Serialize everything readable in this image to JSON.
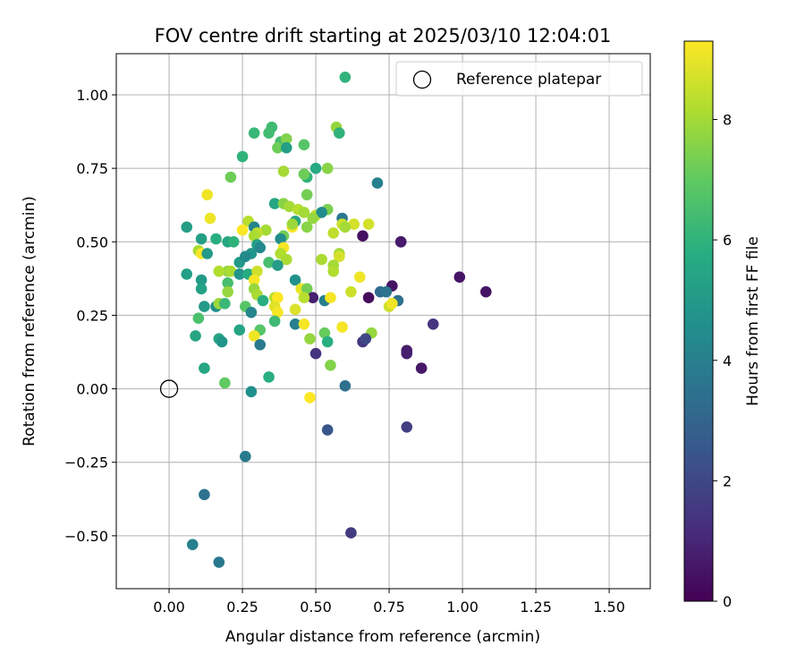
{
  "chart_data": {
    "type": "scatter",
    "title": "FOV centre drift starting at 2025/03/10 12:04:01",
    "xlabel": "Angular distance from reference (arcmin)",
    "ylabel": "Rotation from reference (arcmin)",
    "xlim": [
      -0.18,
      1.64
    ],
    "ylim": [
      -0.68,
      1.14
    ],
    "x_ticks": [
      "0.00",
      "0.25",
      "0.50",
      "0.75",
      "1.00",
      "1.25",
      "1.50"
    ],
    "y_ticks": [
      "−0.50",
      "−0.25",
      "0.00",
      "0.25",
      "0.50",
      "0.75",
      "1.00"
    ],
    "grid": true,
    "legend": {
      "placement": "top-right",
      "entries": [
        "Reference platepar"
      ]
    },
    "reference_point": {
      "x": 0.0,
      "y": 0.0
    },
    "colorbar": {
      "label": "Hours from first FF file",
      "range": [
        0,
        9.3
      ],
      "ticks": [
        "0",
        "2",
        "4",
        "6",
        "8"
      ],
      "colormap": "viridis"
    },
    "points": [
      [
        0.6,
        1.06,
        6.0
      ],
      [
        0.35,
        0.89,
        6.3
      ],
      [
        0.57,
        0.89,
        7.8
      ],
      [
        0.29,
        0.87,
        6.2
      ],
      [
        0.34,
        0.87,
        6.4
      ],
      [
        0.58,
        0.87,
        6.0
      ],
      [
        0.38,
        0.84,
        6.5
      ],
      [
        0.4,
        0.85,
        7.5
      ],
      [
        0.46,
        0.83,
        6.8
      ],
      [
        0.37,
        0.82,
        7.2
      ],
      [
        0.4,
        0.82,
        5.2
      ],
      [
        0.25,
        0.79,
        6.0
      ],
      [
        0.54,
        0.75,
        7.6
      ],
      [
        0.5,
        0.75,
        5.6
      ],
      [
        0.39,
        0.74,
        8.0
      ],
      [
        0.21,
        0.72,
        7.2
      ],
      [
        0.47,
        0.72,
        6.0
      ],
      [
        0.46,
        0.73,
        7.2
      ],
      [
        0.71,
        0.7,
        4.0
      ],
      [
        0.47,
        0.66,
        7.3
      ],
      [
        0.13,
        0.66,
        9.1
      ],
      [
        0.36,
        0.63,
        5.5
      ],
      [
        0.39,
        0.63,
        7.6
      ],
      [
        0.41,
        0.62,
        8.0
      ],
      [
        0.44,
        0.61,
        8.3
      ],
      [
        0.54,
        0.61,
        7.4
      ],
      [
        0.46,
        0.6,
        8.0
      ],
      [
        0.5,
        0.59,
        8.4
      ],
      [
        0.52,
        0.6,
        4.5
      ],
      [
        0.49,
        0.58,
        7.8
      ],
      [
        0.59,
        0.58,
        3.7
      ],
      [
        0.43,
        0.57,
        5.4
      ],
      [
        0.27,
        0.57,
        8.3
      ],
      [
        0.14,
        0.58,
        9.1
      ],
      [
        0.06,
        0.55,
        5.2
      ],
      [
        0.29,
        0.55,
        4.2
      ],
      [
        0.33,
        0.54,
        8.0
      ],
      [
        0.3,
        0.53,
        8.4
      ],
      [
        0.25,
        0.54,
        9.3
      ],
      [
        0.29,
        0.52,
        8.1
      ],
      [
        0.42,
        0.55,
        9.2
      ],
      [
        0.42,
        0.56,
        7.9
      ],
      [
        0.56,
        0.53,
        8.4
      ],
      [
        0.59,
        0.56,
        8.6
      ],
      [
        0.63,
        0.56,
        8.7
      ],
      [
        0.68,
        0.56,
        8.7
      ],
      [
        0.6,
        0.55,
        8.0
      ],
      [
        0.47,
        0.55,
        7.6
      ],
      [
        0.39,
        0.52,
        7.3
      ],
      [
        0.38,
        0.51,
        4.5
      ],
      [
        0.66,
        0.52,
        0.4
      ],
      [
        0.79,
        0.5,
        0.8
      ],
      [
        0.79,
        0.5,
        0.7
      ],
      [
        0.11,
        0.51,
        5.2
      ],
      [
        0.16,
        0.51,
        5.8
      ],
      [
        0.2,
        0.5,
        5.5
      ],
      [
        0.22,
        0.5,
        6.0
      ],
      [
        0.3,
        0.49,
        5.2
      ],
      [
        0.31,
        0.48,
        4.3
      ],
      [
        0.39,
        0.48,
        9.2
      ],
      [
        0.38,
        0.46,
        8.2
      ],
      [
        0.28,
        0.46,
        4.8
      ],
      [
        0.24,
        0.43,
        5.0
      ],
      [
        0.26,
        0.45,
        4.4
      ],
      [
        0.1,
        0.47,
        8.1
      ],
      [
        0.11,
        0.46,
        9.2
      ],
      [
        0.13,
        0.46,
        5.0
      ],
      [
        0.58,
        0.46,
        8.0
      ],
      [
        0.58,
        0.45,
        8.7
      ],
      [
        0.52,
        0.44,
        8.1
      ],
      [
        0.4,
        0.44,
        8.1
      ],
      [
        0.34,
        0.43,
        6.5
      ],
      [
        0.37,
        0.42,
        5.1
      ],
      [
        0.2,
        0.4,
        7.7
      ],
      [
        0.21,
        0.4,
        8.1
      ],
      [
        0.17,
        0.4,
        8.2
      ],
      [
        0.24,
        0.39,
        4.8
      ],
      [
        0.27,
        0.39,
        5.7
      ],
      [
        0.3,
        0.4,
        8.6
      ],
      [
        0.29,
        0.37,
        9.2
      ],
      [
        0.06,
        0.39,
        5.2
      ],
      [
        0.11,
        0.37,
        5.0
      ],
      [
        0.2,
        0.36,
        6.5
      ],
      [
        0.43,
        0.37,
        4.7
      ],
      [
        0.56,
        0.42,
        8.0
      ],
      [
        0.56,
        0.4,
        8.2
      ],
      [
        0.65,
        0.38,
        9.1
      ],
      [
        0.76,
        0.35,
        0.5
      ],
      [
        0.72,
        0.33,
        3.2
      ],
      [
        0.74,
        0.33,
        3.6
      ],
      [
        0.99,
        0.38,
        0.5
      ],
      [
        1.08,
        0.33,
        0.5
      ],
      [
        0.29,
        0.34,
        7.8
      ],
      [
        0.3,
        0.32,
        8.1
      ],
      [
        0.36,
        0.31,
        8.2
      ],
      [
        0.37,
        0.31,
        9.3
      ],
      [
        0.45,
        0.34,
        9.0
      ],
      [
        0.47,
        0.34,
        7.3
      ],
      [
        0.49,
        0.31,
        0.8
      ],
      [
        0.46,
        0.31,
        8.3
      ],
      [
        0.53,
        0.3,
        4.0
      ],
      [
        0.55,
        0.31,
        9.2
      ],
      [
        0.62,
        0.33,
        8.6
      ],
      [
        0.68,
        0.31,
        0.3
      ],
      [
        0.78,
        0.3,
        3.5
      ],
      [
        0.75,
        0.28,
        8.6
      ],
      [
        0.76,
        0.29,
        9.1
      ],
      [
        0.11,
        0.34,
        5.3
      ],
      [
        0.2,
        0.33,
        7.8
      ],
      [
        0.12,
        0.28,
        5.0
      ],
      [
        0.16,
        0.28,
        4.6
      ],
      [
        0.17,
        0.29,
        7.9
      ],
      [
        0.19,
        0.29,
        6.2
      ],
      [
        0.26,
        0.28,
        6.8
      ],
      [
        0.28,
        0.26,
        4.2
      ],
      [
        0.32,
        0.3,
        5.8
      ],
      [
        0.36,
        0.28,
        8.9
      ],
      [
        0.37,
        0.26,
        9.2
      ],
      [
        0.43,
        0.27,
        8.8
      ],
      [
        0.9,
        0.22,
        1.4
      ],
      [
        0.1,
        0.24,
        6.6
      ],
      [
        0.31,
        0.2,
        6.8
      ],
      [
        0.29,
        0.18,
        9.1
      ],
      [
        0.36,
        0.23,
        6.3
      ],
      [
        0.43,
        0.22,
        4.0
      ],
      [
        0.46,
        0.22,
        9.2
      ],
      [
        0.59,
        0.21,
        9.2
      ],
      [
        0.69,
        0.19,
        7.8
      ],
      [
        0.53,
        0.19,
        7.1
      ],
      [
        0.24,
        0.2,
        5.4
      ],
      [
        0.09,
        0.18,
        5.4
      ],
      [
        0.17,
        0.17,
        5.4
      ],
      [
        0.18,
        0.16,
        4.8
      ],
      [
        0.31,
        0.15,
        3.8
      ],
      [
        0.48,
        0.17,
        7.8
      ],
      [
        0.54,
        0.16,
        5.8
      ],
      [
        0.66,
        0.16,
        1.5
      ],
      [
        0.67,
        0.17,
        2.0
      ],
      [
        0.5,
        0.12,
        1.4
      ],
      [
        0.81,
        0.13,
        0.7
      ],
      [
        0.81,
        0.12,
        0.8
      ],
      [
        0.86,
        0.07,
        0.6
      ],
      [
        0.12,
        0.07,
        5.5
      ],
      [
        0.34,
        0.04,
        5.8
      ],
      [
        0.55,
        0.08,
        7.5
      ],
      [
        0.19,
        0.02,
        7.0
      ],
      [
        0.6,
        0.01,
        3.4
      ],
      [
        0.28,
        -0.01,
        4.6
      ],
      [
        0.48,
        -0.03,
        9.3
      ],
      [
        0.54,
        -0.14,
        2.5
      ],
      [
        0.81,
        -0.13,
        1.7
      ],
      [
        0.26,
        -0.23,
        3.8
      ],
      [
        0.12,
        -0.36,
        3.5
      ],
      [
        0.62,
        -0.49,
        1.6
      ],
      [
        0.08,
        -0.53,
        4.0
      ],
      [
        0.17,
        -0.59,
        3.7
      ]
    ]
  }
}
